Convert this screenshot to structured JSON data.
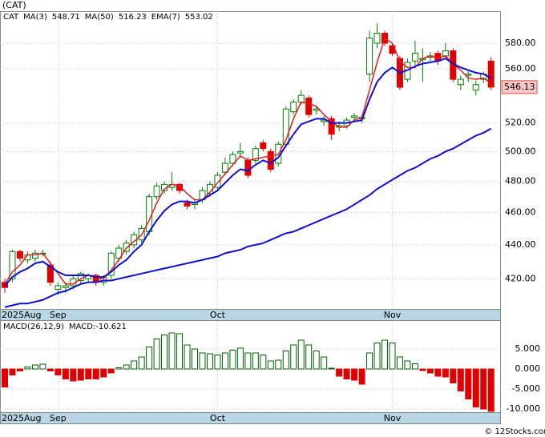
{
  "footer": "© 12Stocks.com",
  "chart_data": [
    {
      "type": "candlestick",
      "title": "(CAT)",
      "symbol": "CAT",
      "log_scale": true,
      "grid": true,
      "up_color": "#008000",
      "down_color": "#e00000",
      "categories": [
        "2025Aug",
        null,
        null,
        null,
        null,
        null,
        null,
        "Sep",
        null,
        null,
        null,
        null,
        null,
        null,
        null,
        null,
        null,
        null,
        null,
        null,
        null,
        null,
        null,
        null,
        null,
        null,
        null,
        null,
        "Oct",
        null,
        null,
        null,
        null,
        null,
        null,
        null,
        null,
        null,
        null,
        null,
        null,
        null,
        null,
        null,
        null,
        null,
        null,
        null,
        null,
        null,
        null,
        "Nov",
        null,
        null,
        null,
        null,
        null,
        null,
        null,
        null,
        null,
        null,
        null,
        null,
        null
      ],
      "open": [
        418,
        420,
        436,
        431,
        432,
        435,
        428,
        414,
        415,
        416,
        419,
        420,
        422,
        418,
        422,
        432,
        436,
        440,
        443,
        448,
        470,
        474,
        476,
        478,
        466,
        465,
        468,
        472,
        476,
        486,
        492,
        499,
        494,
        494,
        506,
        500,
        492,
        505,
        528,
        535,
        538,
        529,
        521,
        523,
        517,
        518,
        524,
        523,
        556,
        580,
        588,
        578,
        568,
        552,
        566,
        567,
        569,
        572,
        570,
        574,
        548,
        555,
        544,
        552,
        566
      ],
      "high": [
        420,
        437,
        437,
        436,
        437,
        437,
        430,
        418,
        418,
        422,
        424,
        423,
        423,
        422,
        436,
        440,
        443,
        448,
        452,
        472,
        479,
        480,
        486,
        479,
        468,
        468,
        476,
        480,
        486,
        496,
        500,
        506,
        496,
        504,
        508,
        502,
        507,
        532,
        537,
        544,
        540,
        532,
        525,
        525,
        521,
        524,
        527,
        526,
        590,
        596,
        590,
        580,
        570,
        568,
        582,
        576,
        573,
        574,
        580,
        576,
        555,
        558,
        551,
        558,
        569
      ],
      "low": [
        412,
        418,
        430,
        429,
        430,
        433,
        416,
        411,
        412,
        414,
        417,
        418,
        416,
        416,
        420,
        430,
        434,
        438,
        441,
        446,
        468,
        472,
        474,
        472,
        462,
        462,
        466,
        470,
        474,
        484,
        490,
        496,
        482,
        492,
        500,
        486,
        490,
        503,
        526,
        533,
        524,
        526,
        518,
        508,
        514,
        516,
        521,
        520,
        550,
        576,
        578,
        570,
        544,
        550,
        563,
        550,
        566,
        563,
        568,
        550,
        544,
        550,
        540,
        549,
        544
      ],
      "close": [
        415,
        436,
        432,
        434,
        435,
        435,
        418,
        416,
        416,
        420,
        423,
        422,
        418,
        421,
        435,
        438,
        441,
        446,
        450,
        470,
        477,
        478,
        478,
        474,
        464,
        466,
        474,
        478,
        484,
        492,
        498,
        500,
        484,
        502,
        502,
        488,
        505,
        530,
        535,
        540,
        526,
        530,
        522,
        512,
        518,
        522,
        525,
        524,
        584,
        588,
        580,
        572,
        546,
        565,
        572,
        568,
        570,
        566,
        574,
        552,
        552,
        556,
        548,
        556,
        546.13
      ],
      "last_price": 546.13,
      "series": [
        {
          "name": "MA(3)",
          "last_value": 548.71,
          "color": "#e02020",
          "width": 1.5,
          "values": [
            417,
            424,
            428,
            434,
            434,
            435,
            429,
            423,
            417,
            417,
            420,
            422,
            421,
            420,
            425,
            431,
            438,
            442,
            446,
            455,
            466,
            475,
            478,
            477,
            472,
            468,
            468,
            473,
            479,
            485,
            491,
            497,
            494,
            495,
            496,
            497,
            498,
            508,
            523,
            535,
            534,
            532,
            526,
            521,
            517,
            517,
            522,
            524,
            544,
            565,
            584,
            580,
            566,
            561,
            561,
            568,
            570,
            568,
            570,
            564,
            559,
            553,
            552,
            553,
            549
          ]
        },
        {
          "name": "MA(50)",
          "last_value": 516.23,
          "color": "#1010d0",
          "width": 2,
          "values": [
            404,
            405,
            406,
            406,
            407,
            408,
            410,
            412,
            413,
            415,
            417,
            418,
            418,
            419,
            419,
            420,
            421,
            422,
            423,
            424,
            425,
            426,
            427,
            428,
            429,
            430,
            431,
            432,
            433,
            435,
            436,
            437,
            439,
            440,
            441,
            443,
            445,
            447,
            448,
            450,
            452,
            454,
            456,
            458,
            460,
            462,
            465,
            468,
            471,
            475,
            478,
            481,
            484,
            487,
            489,
            492,
            495,
            497,
            500,
            502,
            505,
            508,
            511,
            513,
            516
          ]
        },
        {
          "name": "EMA(7)",
          "last_value": 553.02,
          "color": "#1010d0",
          "width": 2,
          "values": [
            416,
            421,
            424,
            426,
            429,
            430,
            427,
            424,
            422,
            422,
            422,
            422,
            421,
            421,
            424,
            428,
            431,
            436,
            440,
            448,
            455,
            461,
            465,
            467,
            467,
            466,
            468,
            471,
            474,
            479,
            484,
            488,
            487,
            491,
            494,
            492,
            496,
            504,
            512,
            519,
            521,
            523,
            523,
            520,
            520,
            520,
            521,
            522,
            537,
            550,
            557,
            561,
            557,
            559,
            562,
            564,
            565,
            566,
            568,
            564,
            561,
            559,
            557,
            556,
            553
          ]
        }
      ],
      "ylim": [
        403,
        606
      ],
      "yticks": [
        {
          "value": 420,
          "label": "420.00"
        },
        {
          "value": 440,
          "label": "440.00"
        },
        {
          "value": 460,
          "label": "460.00"
        },
        {
          "value": 480,
          "label": "480.00"
        },
        {
          "value": 500,
          "label": "500.00"
        },
        {
          "value": 520,
          "label": "520.00"
        },
        {
          "value": 560,
          "label": "560.00"
        },
        {
          "value": 580,
          "label": "580.00"
        }
      ]
    },
    {
      "type": "bar",
      "title": "MACD(26,12,9)",
      "readout": "MACD:-10.621",
      "grid": true,
      "up_color": "#006000",
      "down_color": "#e00000",
      "values": [
        -4.5,
        -1.5,
        -0.5,
        0.5,
        1,
        1.2,
        -0.5,
        -1.5,
        -2.5,
        -3,
        -2.8,
        -2.5,
        -2.5,
        -2,
        -1,
        0.3,
        1,
        2,
        3,
        5.5,
        7.5,
        8.5,
        9,
        8.8,
        6,
        5,
        4,
        3.8,
        3.5,
        4,
        4.7,
        5.2,
        4,
        4,
        3.5,
        2,
        2.2,
        4.5,
        6,
        7.2,
        6,
        4.5,
        3,
        0.2,
        -1.8,
        -2.5,
        -2.8,
        -3.8,
        4,
        6.5,
        7.2,
        6.5,
        3,
        2,
        1.3,
        -0.4,
        -1,
        -1.8,
        -2,
        -3.5,
        -5.5,
        -7.5,
        -9.5,
        -10,
        -10.6
      ],
      "ylim": [
        -10.8,
        12
      ],
      "yticks": [
        {
          "value": 5,
          "label": "5.000"
        },
        {
          "value": 0,
          "label": "0.000"
        },
        {
          "value": -5,
          "label": "-5.000"
        },
        {
          "value": -10,
          "label": "-10.000"
        }
      ]
    }
  ]
}
